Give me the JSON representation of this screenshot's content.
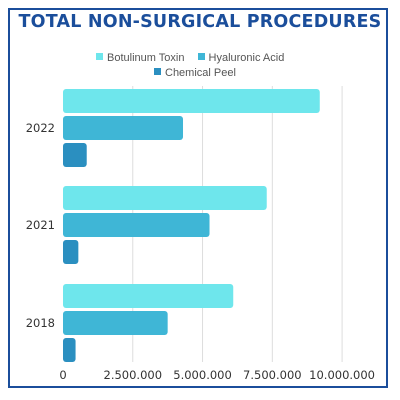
{
  "chart_data": {
    "type": "bar",
    "orientation": "horizontal",
    "title": "TOTAL NON-SURGICAL PROCEDURES",
    "categories": [
      "2022",
      "2021",
      "2018"
    ],
    "series": [
      {
        "name": "Botulinum Toxin",
        "color": "#6ee6ec",
        "values": [
          9200000,
          7300000,
          6100000
        ]
      },
      {
        "name": "Hyaluronic Acid",
        "color": "#3fb6d6",
        "values": [
          4300000,
          5250000,
          3750000
        ]
      },
      {
        "name": "Chemical Peel",
        "color": "#2b8fc0",
        "values": [
          850000,
          550000,
          450000
        ]
      }
    ],
    "xlim": [
      0,
      11000000
    ],
    "xticks": [
      0,
      2500000,
      5000000,
      7500000,
      10000000
    ],
    "xtick_labels": [
      "0",
      "2.500.000",
      "5.000.000",
      "7.500.000",
      "10.000.000"
    ],
    "grid": true,
    "legend_position": "top"
  },
  "colors": {
    "title": "#1b4e9b",
    "border": "#1b4e9b",
    "grid": "#dddddd"
  }
}
